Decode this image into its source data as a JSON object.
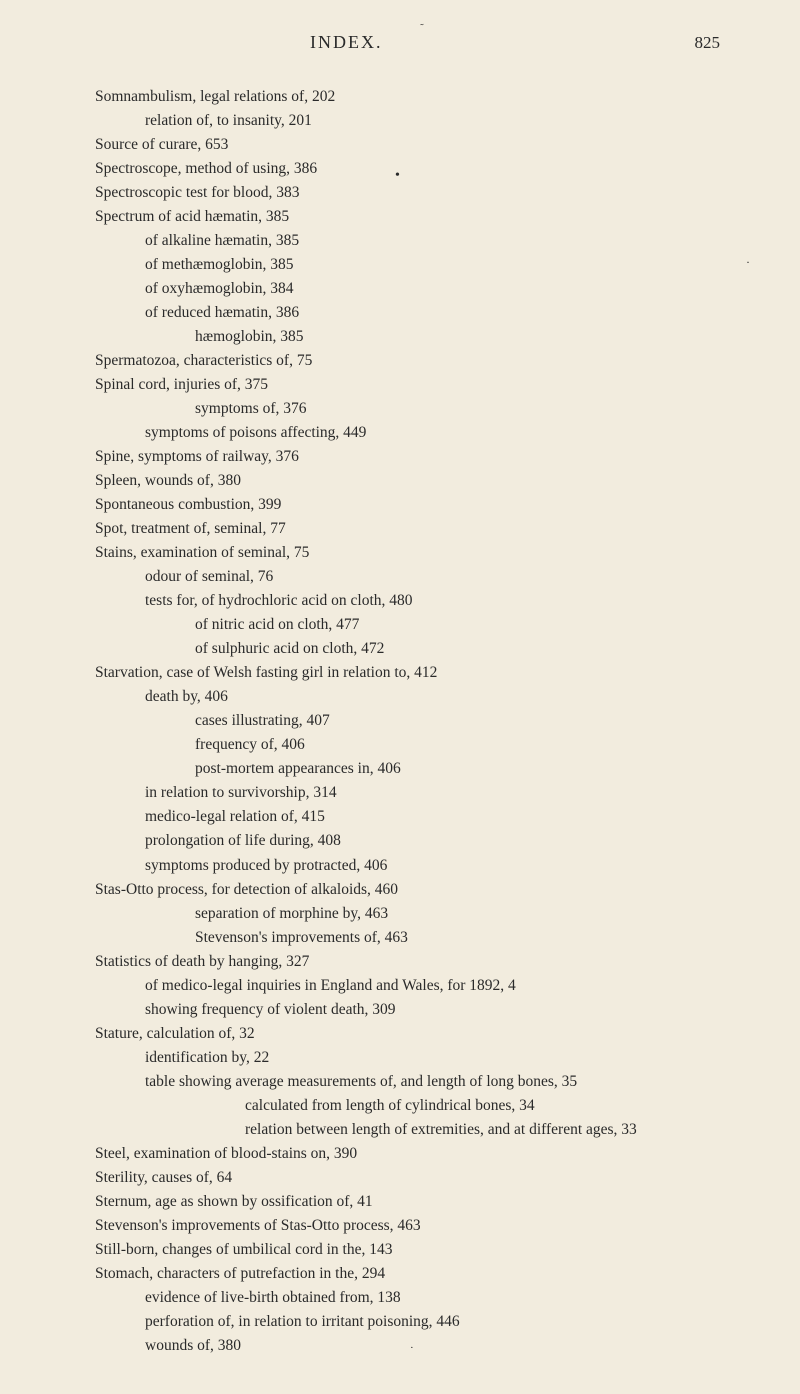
{
  "header": {
    "title": "INDEX.",
    "page": "825"
  },
  "entries": [
    {
      "text": "Somnambulism, legal relations of, 202",
      "level": 0
    },
    {
      "text": "relation of, to insanity, 201",
      "level": 1
    },
    {
      "text": "Source of curare, 653",
      "level": 0
    },
    {
      "text": "Spectroscope, method of using, 386",
      "level": 0
    },
    {
      "text": "Spectroscopic test for blood, 383",
      "level": 0
    },
    {
      "text": "Spectrum of acid hæmatin, 385",
      "level": 0
    },
    {
      "text": "of alkaline hæmatin, 385",
      "level": 1
    },
    {
      "text": "of methæmoglobin, 385",
      "level": 1
    },
    {
      "text": "of oxyhæmoglobin, 384",
      "level": 1
    },
    {
      "text": "of reduced hæmatin, 386",
      "level": 1
    },
    {
      "text": "hæmoglobin, 385",
      "level": 2
    },
    {
      "text": "Spermatozoa, characteristics of, 75",
      "level": 0
    },
    {
      "text": "Spinal cord, injuries of, 375",
      "level": 0
    },
    {
      "text": "symptoms of, 376",
      "level": 2
    },
    {
      "text": "symptoms of poisons affecting, 449",
      "level": 1
    },
    {
      "text": "Spine, symptoms of railway, 376",
      "level": 0
    },
    {
      "text": "Spleen, wounds of, 380",
      "level": 0
    },
    {
      "text": "Spontaneous combustion, 399",
      "level": 0
    },
    {
      "text": "Spot, treatment of, seminal, 77",
      "level": 0
    },
    {
      "text": "Stains, examination of seminal, 75",
      "level": 0
    },
    {
      "text": "odour of seminal, 76",
      "level": 1
    },
    {
      "text": "tests for, of hydrochloric acid on cloth, 480",
      "level": 1
    },
    {
      "text": "of nitric acid on cloth, 477",
      "level": 2
    },
    {
      "text": "of sulphuric acid on cloth, 472",
      "level": 2
    },
    {
      "text": "Starvation, case of Welsh fasting girl in relation to, 412",
      "level": 0
    },
    {
      "text": "death by, 406",
      "level": 1
    },
    {
      "text": "cases illustrating, 407",
      "level": 2
    },
    {
      "text": "frequency of, 406",
      "level": 2
    },
    {
      "text": "post-mortem appearances in, 406",
      "level": 2
    },
    {
      "text": "in relation to survivorship, 314",
      "level": 1
    },
    {
      "text": "medico-legal relation of, 415",
      "level": 1
    },
    {
      "text": "prolongation of life during, 408",
      "level": 1
    },
    {
      "text": "symptoms produced by protracted, 406",
      "level": 1
    },
    {
      "text": "Stas-Otto process, for detection of alkaloids, 460",
      "level": 0
    },
    {
      "text": "separation of morphine by, 463",
      "level": 2
    },
    {
      "text": "Stevenson's improvements of, 463",
      "level": 2
    },
    {
      "text": "Statistics of death by hanging, 327",
      "level": 0
    },
    {
      "text": "of medico-legal inquiries in England and Wales, for 1892, 4",
      "level": 1
    },
    {
      "text": "showing frequency of violent death, 309",
      "level": 1
    },
    {
      "text": "Stature, calculation of, 32",
      "level": 0
    },
    {
      "text": "identification by, 22",
      "level": 1
    },
    {
      "text": "table showing average measurements of, and length of long bones, 35",
      "level": 1
    },
    {
      "text": "calculated from length of cylindrical bones, 34",
      "level": 3
    },
    {
      "text": "relation between length of extremities, and at different ages, 33",
      "level": 3
    },
    {
      "text": "Steel, examination of blood-stains on, 390",
      "level": 0
    },
    {
      "text": "Sterility, causes of, 64",
      "level": 0
    },
    {
      "text": "Sternum, age as shown by ossification of, 41",
      "level": 0
    },
    {
      "text": "Stevenson's improvements of Stas-Otto process, 463",
      "level": 0
    },
    {
      "text": "Still-born, changes of umbilical cord in the, 143",
      "level": 0
    },
    {
      "text": "Stomach, characters of putrefaction in the, 294",
      "level": 0
    },
    {
      "text": "evidence of live-birth obtained from, 138",
      "level": 1
    },
    {
      "text": "perforation of, in relation to irritant poisoning, 446",
      "level": 1
    },
    {
      "text": "wounds of, 380",
      "level": 1
    }
  ]
}
